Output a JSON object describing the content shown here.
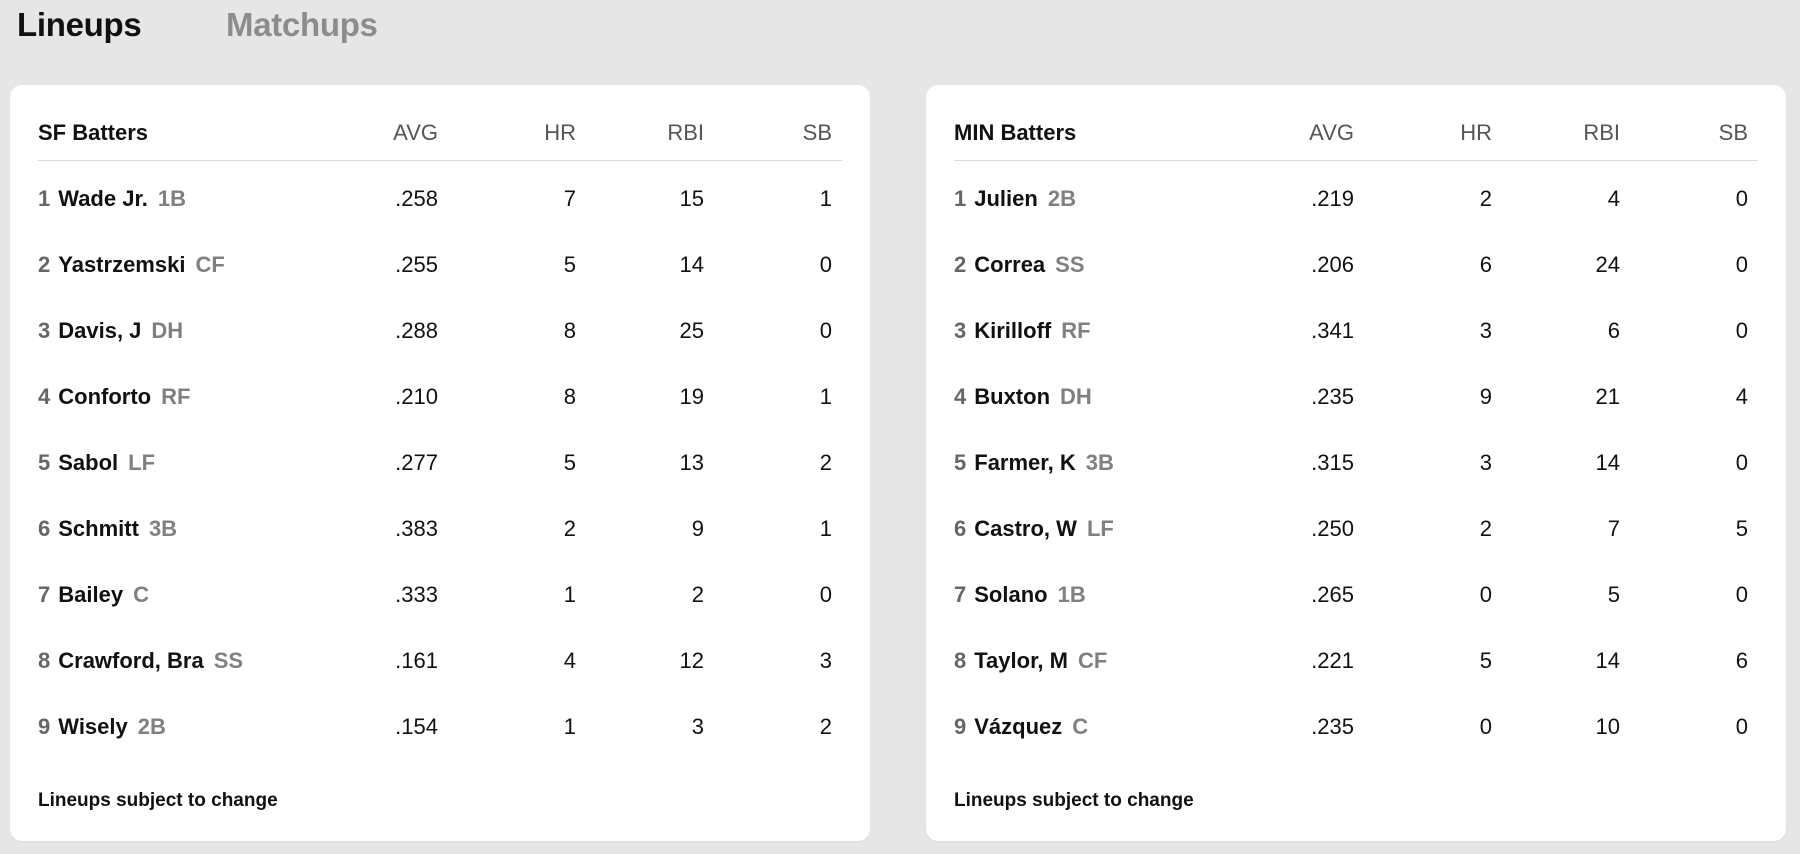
{
  "tabs": [
    {
      "label": "Lineups",
      "active": true
    },
    {
      "label": "Matchups",
      "active": false
    }
  ],
  "columns": [
    "AVG",
    "HR",
    "RBI",
    "SB"
  ],
  "teams": [
    {
      "title": "SF Batters",
      "footer": "Lineups subject to change",
      "players": [
        {
          "order": "1",
          "name": "Wade Jr.",
          "pos": "1B",
          "avg": ".258",
          "hr": "7",
          "rbi": "15",
          "sb": "1"
        },
        {
          "order": "2",
          "name": "Yastrzemski",
          "pos": "CF",
          "avg": ".255",
          "hr": "5",
          "rbi": "14",
          "sb": "0"
        },
        {
          "order": "3",
          "name": "Davis, J",
          "pos": "DH",
          "avg": ".288",
          "hr": "8",
          "rbi": "25",
          "sb": "0"
        },
        {
          "order": "4",
          "name": "Conforto",
          "pos": "RF",
          "avg": ".210",
          "hr": "8",
          "rbi": "19",
          "sb": "1"
        },
        {
          "order": "5",
          "name": "Sabol",
          "pos": "LF",
          "avg": ".277",
          "hr": "5",
          "rbi": "13",
          "sb": "2"
        },
        {
          "order": "6",
          "name": "Schmitt",
          "pos": "3B",
          "avg": ".383",
          "hr": "2",
          "rbi": "9",
          "sb": "1"
        },
        {
          "order": "7",
          "name": "Bailey",
          "pos": "C",
          "avg": ".333",
          "hr": "1",
          "rbi": "2",
          "sb": "0"
        },
        {
          "order": "8",
          "name": "Crawford, Bra",
          "pos": "SS",
          "avg": ".161",
          "hr": "4",
          "rbi": "12",
          "sb": "3"
        },
        {
          "order": "9",
          "name": "Wisely",
          "pos": "2B",
          "avg": ".154",
          "hr": "1",
          "rbi": "3",
          "sb": "2"
        }
      ]
    },
    {
      "title": "MIN Batters",
      "footer": "Lineups subject to change",
      "players": [
        {
          "order": "1",
          "name": "Julien",
          "pos": "2B",
          "avg": ".219",
          "hr": "2",
          "rbi": "4",
          "sb": "0"
        },
        {
          "order": "2",
          "name": "Correa",
          "pos": "SS",
          "avg": ".206",
          "hr": "6",
          "rbi": "24",
          "sb": "0"
        },
        {
          "order": "3",
          "name": "Kirilloff",
          "pos": "RF",
          "avg": ".341",
          "hr": "3",
          "rbi": "6",
          "sb": "0"
        },
        {
          "order": "4",
          "name": "Buxton",
          "pos": "DH",
          "avg": ".235",
          "hr": "9",
          "rbi": "21",
          "sb": "4"
        },
        {
          "order": "5",
          "name": "Farmer, K",
          "pos": "3B",
          "avg": ".315",
          "hr": "3",
          "rbi": "14",
          "sb": "0"
        },
        {
          "order": "6",
          "name": "Castro, W",
          "pos": "LF",
          "avg": ".250",
          "hr": "2",
          "rbi": "7",
          "sb": "5"
        },
        {
          "order": "7",
          "name": "Solano",
          "pos": "1B",
          "avg": ".265",
          "hr": "0",
          "rbi": "5",
          "sb": "0"
        },
        {
          "order": "8",
          "name": "Taylor, M",
          "pos": "CF",
          "avg": ".221",
          "hr": "5",
          "rbi": "14",
          "sb": "6"
        },
        {
          "order": "9",
          "name": "Vázquez",
          "pos": "C",
          "avg": ".235",
          "hr": "0",
          "rbi": "10",
          "sb": "0"
        }
      ]
    }
  ]
}
